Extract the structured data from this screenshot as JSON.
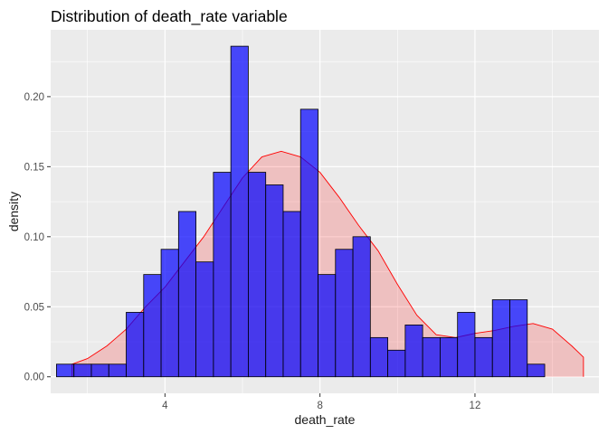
{
  "chart_data": {
    "type": "bar",
    "title": "Distribution of death_rate variable",
    "xlabel": "death_rate",
    "ylabel": "density",
    "xlim": [
      1.05,
      15.2
    ],
    "ylim": [
      -0.0118,
      0.2477
    ],
    "x_ticks": [
      4,
      8,
      12
    ],
    "x_tick_labels": [
      "4",
      "8",
      "12"
    ],
    "y_ticks": [
      0,
      0.05,
      0.1,
      0.15,
      0.2
    ],
    "y_tick_labels": [
      "0.00",
      "0.05",
      "0.10",
      "0.15",
      "0.20"
    ],
    "grid": true,
    "legend": "none",
    "bin_edges": [
      1.2,
      1.65,
      2.1,
      2.55,
      3.0,
      3.45,
      3.9,
      4.35,
      4.8,
      5.25,
      5.7,
      6.15,
      6.6,
      7.05,
      7.5,
      7.95,
      8.4,
      8.85,
      9.3,
      9.75,
      10.2,
      10.65,
      11.1,
      11.55,
      12.0,
      12.45,
      12.9,
      13.35,
      13.8,
      14.25,
      14.7
    ],
    "series": [
      {
        "type": "histogram",
        "values": [
          0.009,
          0.009,
          0.009,
          0.009,
          0.046,
          0.073,
          0.091,
          0.118,
          0.082,
          0.146,
          0.236,
          0.146,
          0.137,
          0.118,
          0.191,
          0.073,
          0.091,
          0.1,
          0.028,
          0.019,
          0.037,
          0.028,
          0.028,
          0.046,
          0.028,
          0.055,
          0.055,
          0.009,
          0,
          0
        ],
        "fill": "#0000ff",
        "opacity": 0.7,
        "outline": "#000000"
      },
      {
        "type": "density",
        "x": [
          1.6,
          2.0,
          2.5,
          3.0,
          3.5,
          4.0,
          4.5,
          5.0,
          5.5,
          6.0,
          6.5,
          7.0,
          7.5,
          8.0,
          8.5,
          9.0,
          9.5,
          10.0,
          10.5,
          11.0,
          11.5,
          12.0,
          12.5,
          13.0,
          13.5,
          14.0,
          14.5,
          14.8
        ],
        "values": [
          0.009,
          0.013,
          0.022,
          0.034,
          0.05,
          0.064,
          0.082,
          0.1,
          0.121,
          0.142,
          0.157,
          0.161,
          0.157,
          0.146,
          0.128,
          0.108,
          0.09,
          0.066,
          0.044,
          0.03,
          0.028,
          0.031,
          0.033,
          0.036,
          0.038,
          0.034,
          0.022,
          0.014
        ],
        "fill": "#ff0000",
        "fill_opacity": 0.18,
        "stroke": "#ff0000"
      }
    ],
    "colors": {
      "panel_background": "#ebebeb",
      "grid": "#ffffff",
      "tick_text": "#4d4d4d",
      "tick_mark": "#333333",
      "title_text": "#000000",
      "axis_title_text": "#1a1a1a"
    }
  }
}
